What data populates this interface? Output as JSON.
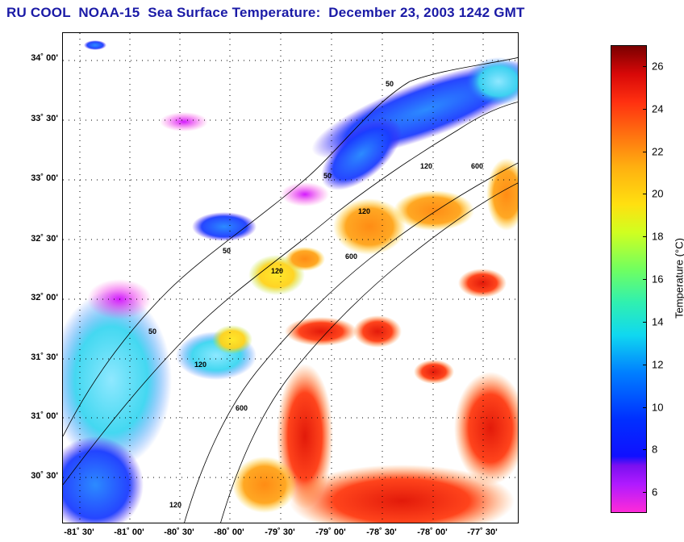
{
  "title": "RU COOL  NOAA-15  Sea Surface Temperature:  December 23, 2003 1242 GMT",
  "lat_labels": [
    "34˚ 00'",
    "33˚ 30'",
    "33˚ 00'",
    "32˚ 30'",
    "32˚ 00'",
    "31˚ 30'",
    "31˚ 00'",
    "30˚ 30'"
  ],
  "lon_labels": [
    "-81˚ 30'",
    "-81˚ 00'",
    "-80˚ 30'",
    "-80˚ 00'",
    "-79˚ 30'",
    "-79˚ 00'",
    "-78˚ 30'",
    "-78˚ 00'",
    "-77˚ 30'"
  ],
  "colorbar": {
    "title": "Temperature (°C)",
    "min": 5,
    "max": 27,
    "tick_values": [
      6,
      8,
      10,
      12,
      14,
      16,
      18,
      20,
      22,
      24,
      26
    ],
    "tick_labels": [
      "6",
      "8",
      "10",
      "12",
      "14",
      "16",
      "18",
      "20",
      "22",
      "24",
      "26"
    ]
  },
  "isobath_labels": [
    "50",
    "50",
    "50",
    "50",
    "120",
    "120",
    "120",
    "120",
    "600",
    "600",
    "600",
    "120"
  ],
  "colors": {
    "title": "#1a1aa6",
    "land": "#ffffff",
    "grid": "#000000"
  }
}
